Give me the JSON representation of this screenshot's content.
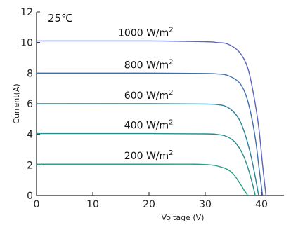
{
  "chart_data": {
    "type": "line",
    "annotation": "25℃",
    "xlabel": "Voltage  (V)",
    "ylabel": "Current(A)",
    "xlim": [
      0,
      44
    ],
    "ylim": [
      0,
      12
    ],
    "x_ticks": [
      "0",
      "10",
      "20",
      "30",
      "40"
    ],
    "y_ticks": [
      "0",
      "2",
      "4",
      "6",
      "8",
      "10",
      "12"
    ],
    "grid": false,
    "legend": "none",
    "series": [
      {
        "label_value": "1000 W/",
        "label_unit": "m",
        "label_exp": "2",
        "color": "#5c65b8",
        "x": [
          0,
          20,
          30,
          32,
          34,
          36,
          37.5,
          38.5,
          39.5,
          40.2,
          40.8
        ],
        "y": [
          10.1,
          10.1,
          10.05,
          10.0,
          9.9,
          9.4,
          8.4,
          6.8,
          4.5,
          2.0,
          0
        ]
      },
      {
        "label_value": "800 W/",
        "label_unit": "m",
        "label_exp": "2",
        "color": "#3f6fab",
        "x": [
          0,
          20,
          30,
          32,
          34,
          36,
          37.2,
          38.2,
          39.0,
          39.6,
          40.2
        ],
        "y": [
          8.0,
          8.0,
          7.98,
          7.95,
          7.85,
          7.4,
          6.6,
          5.2,
          3.5,
          1.7,
          0
        ]
      },
      {
        "label_value": "600 W/",
        "label_unit": "m",
        "label_exp": "2",
        "color": "#2d7f9a",
        "x": [
          0,
          20,
          30,
          32,
          33.5,
          34.8,
          36.0,
          37.0,
          38.0,
          38.8,
          39.5
        ],
        "y": [
          6.0,
          6.0,
          5.98,
          5.95,
          5.85,
          5.55,
          5.0,
          4.1,
          2.8,
          1.4,
          0
        ]
      },
      {
        "label_value": "400 W/",
        "label_unit": "m",
        "label_exp": "2",
        "color": "#268f8b",
        "x": [
          0,
          20,
          30,
          32,
          33.5,
          34.8,
          35.8,
          36.8,
          37.6,
          38.3,
          38.9
        ],
        "y": [
          4.05,
          4.05,
          4.03,
          4.0,
          3.9,
          3.65,
          3.25,
          2.6,
          1.8,
          0.9,
          0
        ]
      },
      {
        "label_value": "200 W/",
        "label_unit": "m",
        "label_exp": "2",
        "color": "#27a187",
        "x": [
          0,
          20,
          28,
          31,
          32.5,
          34.0,
          35.0,
          35.8,
          36.5,
          37.0,
          37.6
        ],
        "y": [
          2.05,
          2.05,
          2.05,
          2.0,
          1.9,
          1.7,
          1.4,
          1.0,
          0.6,
          0.3,
          0
        ]
      }
    ]
  }
}
